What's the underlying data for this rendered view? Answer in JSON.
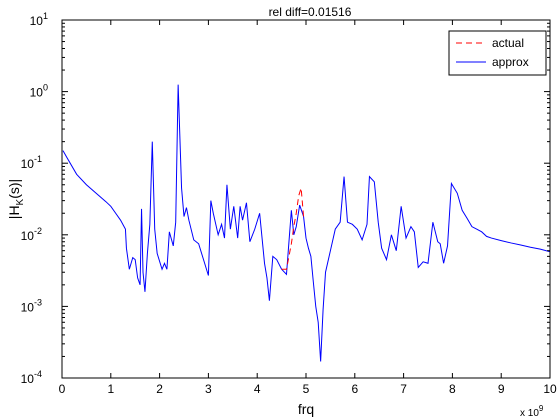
{
  "chart_data": {
    "type": "line",
    "title": "rel diff=0.01516",
    "xlabel": "frq",
    "ylabel": "|H",
    "ylabel_sub": "K",
    "ylabel_tail": "(s)|",
    "x_multiplier": {
      "base": "x 10",
      "exponent": "9"
    },
    "xlim": [
      0,
      10
    ],
    "ylim": [
      0.0001,
      10
    ],
    "yscale": "log",
    "x_ticks": [
      "0",
      "1",
      "2",
      "3",
      "4",
      "5",
      "6",
      "7",
      "8",
      "9",
      "10"
    ],
    "y_ticks": [
      {
        "base": "10",
        "exp": "-4",
        "value": 0.0001
      },
      {
        "base": "10",
        "exp": "-3",
        "value": 0.001
      },
      {
        "base": "10",
        "exp": "-2",
        "value": 0.01
      },
      {
        "base": "10",
        "exp": "-1",
        "value": 0.1
      },
      {
        "base": "10",
        "exp": "0",
        "value": 1
      },
      {
        "base": "10",
        "exp": "1",
        "value": 10
      }
    ],
    "legend_position": "top-right",
    "grid": false,
    "series": [
      {
        "name": "approx",
        "color": "#0000ff",
        "style": "solid",
        "points": [
          [
            0.02,
            0.15
          ],
          [
            0.1,
            0.12
          ],
          [
            0.3,
            0.07
          ],
          [
            0.5,
            0.05
          ],
          [
            0.7,
            0.038
          ],
          [
            0.9,
            0.029
          ],
          [
            1.0,
            0.025
          ],
          [
            1.1,
            0.02
          ],
          [
            1.2,
            0.016
          ],
          [
            1.3,
            0.012
          ],
          [
            1.32,
            0.0065
          ],
          [
            1.38,
            0.0033
          ],
          [
            1.45,
            0.0048
          ],
          [
            1.5,
            0.0045
          ],
          [
            1.55,
            0.0025
          ],
          [
            1.6,
            0.002
          ],
          [
            1.63,
            0.023
          ],
          [
            1.66,
            0.003
          ],
          [
            1.7,
            0.0016
          ],
          [
            1.75,
            0.0055
          ],
          [
            1.8,
            0.014
          ],
          [
            1.85,
            0.2
          ],
          [
            1.9,
            0.012
          ],
          [
            1.95,
            0.0055
          ],
          [
            2.05,
            0.0033
          ],
          [
            2.1,
            0.004
          ],
          [
            2.15,
            0.0033
          ],
          [
            2.2,
            0.011
          ],
          [
            2.28,
            0.007
          ],
          [
            2.33,
            0.015
          ],
          [
            2.38,
            1.25
          ],
          [
            2.45,
            0.045
          ],
          [
            2.5,
            0.018
          ],
          [
            2.55,
            0.024
          ],
          [
            2.6,
            0.016
          ],
          [
            2.7,
            0.0085
          ],
          [
            2.8,
            0.0075
          ],
          [
            2.9,
            0.0045
          ],
          [
            3.0,
            0.0027
          ],
          [
            3.05,
            0.03
          ],
          [
            3.1,
            0.02
          ],
          [
            3.2,
            0.01
          ],
          [
            3.27,
            0.014
          ],
          [
            3.33,
            0.009
          ],
          [
            3.38,
            0.05
          ],
          [
            3.45,
            0.012
          ],
          [
            3.52,
            0.025
          ],
          [
            3.6,
            0.009
          ],
          [
            3.65,
            0.025
          ],
          [
            3.7,
            0.016
          ],
          [
            3.78,
            0.028
          ],
          [
            3.85,
            0.008
          ],
          [
            3.95,
            0.012
          ],
          [
            4.05,
            0.02
          ],
          [
            4.15,
            0.004
          ],
          [
            4.2,
            0.0025
          ],
          [
            4.25,
            0.0012
          ],
          [
            4.32,
            0.005
          ],
          [
            4.4,
            0.0045
          ],
          [
            4.5,
            0.0033
          ],
          [
            4.6,
            0.0028
          ],
          [
            4.7,
            0.022
          ],
          [
            4.75,
            0.01
          ],
          [
            4.8,
            0.013
          ],
          [
            4.87,
            0.026
          ],
          [
            4.95,
            0.018
          ],
          [
            5.0,
            0.009
          ],
          [
            5.05,
            0.0065
          ],
          [
            5.1,
            0.005
          ],
          [
            5.15,
            0.0022
          ],
          [
            5.2,
            0.001
          ],
          [
            5.25,
            0.0006
          ],
          [
            5.3,
            0.00017
          ],
          [
            5.35,
            0.0009
          ],
          [
            5.4,
            0.003
          ],
          [
            5.5,
            0.006
          ],
          [
            5.6,
            0.012
          ],
          [
            5.7,
            0.015
          ],
          [
            5.78,
            0.065
          ],
          [
            5.85,
            0.015
          ],
          [
            5.95,
            0.014
          ],
          [
            6.05,
            0.012
          ],
          [
            6.15,
            0.0085
          ],
          [
            6.25,
            0.014
          ],
          [
            6.3,
            0.065
          ],
          [
            6.4,
            0.055
          ],
          [
            6.48,
            0.015
          ],
          [
            6.55,
            0.0065
          ],
          [
            6.65,
            0.0045
          ],
          [
            6.75,
            0.01
          ],
          [
            6.85,
            0.006
          ],
          [
            6.95,
            0.025
          ],
          [
            7.05,
            0.009
          ],
          [
            7.15,
            0.013
          ],
          [
            7.22,
            0.011
          ],
          [
            7.3,
            0.0035
          ],
          [
            7.4,
            0.0042
          ],
          [
            7.5,
            0.004
          ],
          [
            7.6,
            0.015
          ],
          [
            7.7,
            0.008
          ],
          [
            7.75,
            0.0075
          ],
          [
            7.82,
            0.004
          ],
          [
            7.9,
            0.007
          ],
          [
            7.98,
            0.052
          ],
          [
            8.1,
            0.038
          ],
          [
            8.2,
            0.022
          ],
          [
            8.3,
            0.017
          ],
          [
            8.4,
            0.013
          ],
          [
            8.5,
            0.012
          ],
          [
            8.6,
            0.011
          ],
          [
            8.7,
            0.0095
          ],
          [
            8.8,
            0.009
          ],
          [
            9.0,
            0.0083
          ],
          [
            9.2,
            0.0077
          ],
          [
            9.4,
            0.0072
          ],
          [
            9.6,
            0.0067
          ],
          [
            9.8,
            0.0063
          ],
          [
            10.0,
            0.0058
          ]
        ]
      },
      {
        "name": "actual",
        "color": "#ff0000",
        "style": "dashed",
        "points": [
          [
            4.5,
            0.0033
          ],
          [
            4.6,
            0.0033
          ],
          [
            4.7,
            0.0075
          ],
          [
            4.75,
            0.013
          ],
          [
            4.8,
            0.02
          ],
          [
            4.85,
            0.035
          ],
          [
            4.9,
            0.045
          ],
          [
            4.95,
            0.018
          ]
        ]
      }
    ]
  }
}
